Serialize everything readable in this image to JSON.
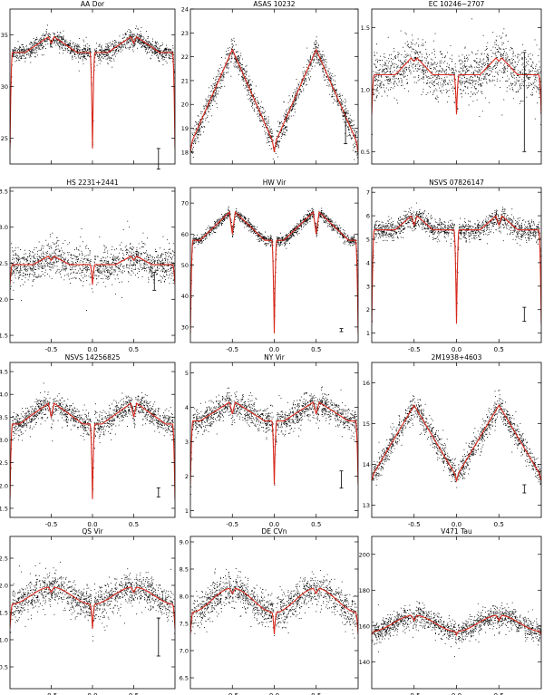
{
  "figure": {
    "x_ticks": [
      -0.5,
      0.0,
      0.5
    ],
    "x_tick_labels": [
      "-0.5",
      "0.0",
      "0.5"
    ],
    "colors": {
      "points": "#000000",
      "model": "#d8281c",
      "axes": "#000000",
      "background": "#ffffff"
    }
  },
  "chart_data": [
    {
      "type": "scatter",
      "title": "AA Dor",
      "xlim": [
        -1,
        1
      ],
      "ylim": [
        22.5,
        37.5
      ],
      "yticks": [
        25,
        30,
        35
      ],
      "ytick_labels": [
        "25",
        "30",
        "35"
      ],
      "model": {
        "base": 33.3,
        "max": 35.0,
        "min": 24.0,
        "shape": "flat",
        "minor_dip": 0.8
      },
      "scatter_sigma": 0.55,
      "error_bar": {
        "x": 0.8,
        "y": 23.0,
        "length": 2.0
      },
      "x_ticks_labeled": false
    },
    {
      "type": "scatter",
      "title": "ASAS 10232",
      "xlim": [
        -1,
        1
      ],
      "ylim": [
        17.5,
        24.0
      ],
      "yticks": [
        18,
        19,
        20,
        21,
        22,
        23,
        24
      ],
      "ytick_labels": [
        "18",
        "19",
        "20",
        "21",
        "22",
        "23",
        "24"
      ],
      "model": {
        "base": 18.3,
        "max": 22.3,
        "min": 18.0,
        "shape": "triangle",
        "minor_dip": 0
      },
      "scatter_sigma": 0.35,
      "error_bar": {
        "x": 0.85,
        "y": 19.0,
        "length": 1.3
      },
      "x_ticks_labeled": false
    },
    {
      "type": "scatter",
      "title": "EC 10246−2707",
      "xlim": [
        -1,
        1
      ],
      "ylim": [
        0.4,
        1.65
      ],
      "yticks": [
        0.5,
        1.0,
        1.5
      ],
      "ytick_labels": [
        "0.5",
        "1.0",
        "1.5"
      ],
      "model": {
        "base": 1.12,
        "max": 1.28,
        "min": 0.8,
        "shape": "bump",
        "minor_dip": 0.05
      },
      "scatter_sigma": 0.13,
      "error_bar": {
        "x": 0.8,
        "y": 0.9,
        "length": 0.8
      },
      "x_ticks_labeled": false
    },
    {
      "type": "scatter",
      "title": "HS 2231+2441",
      "xlim": [
        -1,
        1
      ],
      "ylim": [
        1.4,
        3.55
      ],
      "yticks": [
        1.5,
        2.0,
        2.5,
        3.0,
        3.5
      ],
      "ytick_labels": [
        "1.5",
        "2.0",
        "2.5",
        "3.0",
        "3.5"
      ],
      "model": {
        "base": 2.48,
        "max": 2.62,
        "min": 2.2,
        "shape": "bump",
        "minor_dip": 0.08
      },
      "scatter_sigma": 0.16,
      "error_bar": {
        "x": 0.75,
        "y": 2.25,
        "length": 0.25
      },
      "x_ticks_labeled": true
    },
    {
      "type": "scatter",
      "title": "HW Vir",
      "xlim": [
        -1,
        1
      ],
      "ylim": [
        25,
        75
      ],
      "yticks": [
        30,
        40,
        50,
        60,
        70
      ],
      "ytick_labels": [
        "30",
        "40",
        "50",
        "60",
        "70"
      ],
      "model": {
        "base": 58,
        "max": 68,
        "min": 28,
        "shape": "peaked",
        "minor_dip": 8
      },
      "scatter_sigma": 1.1,
      "error_bar": {
        "x": 0.8,
        "y": 29,
        "length": 1.0
      },
      "x_ticks_labeled": true
    },
    {
      "type": "scatter",
      "title": "NSVS 07826147",
      "xlim": [
        -1,
        1
      ],
      "ylim": [
        0.6,
        7.2
      ],
      "yticks": [
        1,
        2,
        3,
        4,
        5,
        6,
        7
      ],
      "ytick_labels": [
        "1",
        "2",
        "3",
        "4",
        "5",
        "6",
        "7"
      ],
      "model": {
        "base": 5.4,
        "max": 6.1,
        "min": 1.4,
        "shape": "bump",
        "minor_dip": 0.5
      },
      "scatter_sigma": 0.28,
      "error_bar": {
        "x": 0.8,
        "y": 1.8,
        "length": 0.6
      },
      "x_ticks_labeled": true
    },
    {
      "type": "scatter",
      "title": "NSVS 14256825",
      "xlim": [
        -1,
        1
      ],
      "ylim": [
        1.3,
        4.7
      ],
      "yticks": [
        1.5,
        2.0,
        2.5,
        3.0,
        3.5,
        4.0,
        4.5
      ],
      "ytick_labels": [
        "1.5",
        "2.0",
        "2.5",
        "3.0",
        "3.5",
        "4.0",
        "4.5"
      ],
      "model": {
        "base": 3.35,
        "max": 3.85,
        "min": 1.7,
        "shape": "peaked",
        "minor_dip": 0.35
      },
      "scatter_sigma": 0.18,
      "error_bar": {
        "x": 0.8,
        "y": 1.85,
        "length": 0.2
      },
      "x_ticks_labeled": true
    },
    {
      "type": "scatter",
      "title": "NY Vir",
      "xlim": [
        -1,
        1
      ],
      "ylim": [
        0.8,
        5.3
      ],
      "yticks": [
        1,
        2,
        3,
        4,
        5
      ],
      "ytick_labels": [
        "1",
        "2",
        "3",
        "4",
        "5"
      ],
      "model": {
        "base": 3.6,
        "max": 4.2,
        "min": 1.75,
        "shape": "peaked",
        "minor_dip": 0.4
      },
      "scatter_sigma": 0.25,
      "error_bar": {
        "x": 0.8,
        "y": 1.9,
        "length": 0.5
      },
      "x_ticks_labeled": true
    },
    {
      "type": "scatter",
      "title": "2M1938+4603",
      "xlim": [
        -1,
        1
      ],
      "ylim": [
        12.7,
        16.5
      ],
      "yticks": [
        13,
        14,
        15,
        16
      ],
      "ytick_labels": [
        "13",
        "14",
        "15",
        "16"
      ],
      "model": {
        "base": 13.7,
        "max": 15.45,
        "min": 13.6,
        "shape": "triangle",
        "minor_dip": 0
      },
      "scatter_sigma": 0.2,
      "error_bar": {
        "x": 0.8,
        "y": 13.4,
        "length": 0.2
      },
      "x_ticks_labeled": true
    },
    {
      "type": "scatter",
      "title": "QS Vir",
      "xlim": [
        -1,
        1
      ],
      "ylim": [
        0.1,
        2.9
      ],
      "yticks": [
        0.5,
        1.0,
        1.5,
        2.0,
        2.5
      ],
      "ytick_labels": [
        "0.5",
        "1.0",
        "1.5",
        "2.0",
        "2.5"
      ],
      "model": {
        "base": 1.65,
        "max": 1.97,
        "min": 1.2,
        "shape": "wave",
        "minor_dip": 0.1
      },
      "scatter_sigma": 0.2,
      "error_bar": {
        "x": 0.8,
        "y": 1.05,
        "length": 0.7
      },
      "x_ticks_labeled": true
    },
    {
      "type": "scatter",
      "title": "DE CVn",
      "xlim": [
        -1,
        1
      ],
      "ylim": [
        6.3,
        9.1
      ],
      "yticks": [
        6.5,
        7.0,
        7.5,
        8.0,
        8.5,
        9.0
      ],
      "ytick_labels": [
        "6.5",
        "7.0",
        "7.5",
        "8.0",
        "8.5",
        "9.0"
      ],
      "model": {
        "base": 7.7,
        "max": 8.15,
        "min": 7.3,
        "shape": "wave",
        "minor_dip": 0.1
      },
      "scatter_sigma": 0.2,
      "error_bar": null,
      "x_ticks_labeled": true
    },
    {
      "type": "scatter",
      "title": "V471 Tau",
      "xlim": [
        -1,
        1
      ],
      "ylim": [
        125,
        210
      ],
      "yticks": [
        140,
        160,
        180,
        200
      ],
      "ytick_labels": [
        "140",
        "160",
        "180",
        "200"
      ],
      "model": {
        "base": 157,
        "max": 166,
        "min": 155,
        "shape": "wave",
        "minor_dip": 3
      },
      "scatter_sigma": 4.0,
      "error_bar": null,
      "x_ticks_labeled": true
    }
  ]
}
